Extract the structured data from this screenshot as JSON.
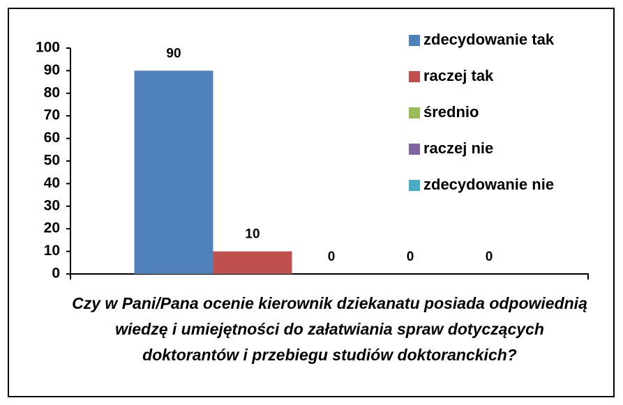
{
  "chart_data": {
    "type": "bar",
    "categories": [
      "Czy w Pani/Pana ocenie kierownik dziekanatu posiada odpowiednią wiedzę i umiejętności do załatwiania spraw dotyczących doktorantów i przebiegu studiów doktoranckich?"
    ],
    "series": [
      {
        "name": "zdecydowanie tak",
        "color": "#4f81bd",
        "values": [
          90
        ]
      },
      {
        "name": "raczej tak",
        "color": "#c0504d",
        "values": [
          10
        ]
      },
      {
        "name": "średnio",
        "color": "#9bbb59",
        "values": [
          0
        ]
      },
      {
        "name": "raczej nie",
        "color": "#8064a2",
        "values": [
          0
        ]
      },
      {
        "name": "zdecydowanie nie",
        "color": "#4bacc6",
        "values": [
          0
        ]
      }
    ],
    "ylim": [
      0,
      100
    ],
    "yticks": [
      0,
      10,
      20,
      30,
      40,
      50,
      60,
      70,
      80,
      90,
      100
    ],
    "grid": false,
    "legend": "right"
  }
}
